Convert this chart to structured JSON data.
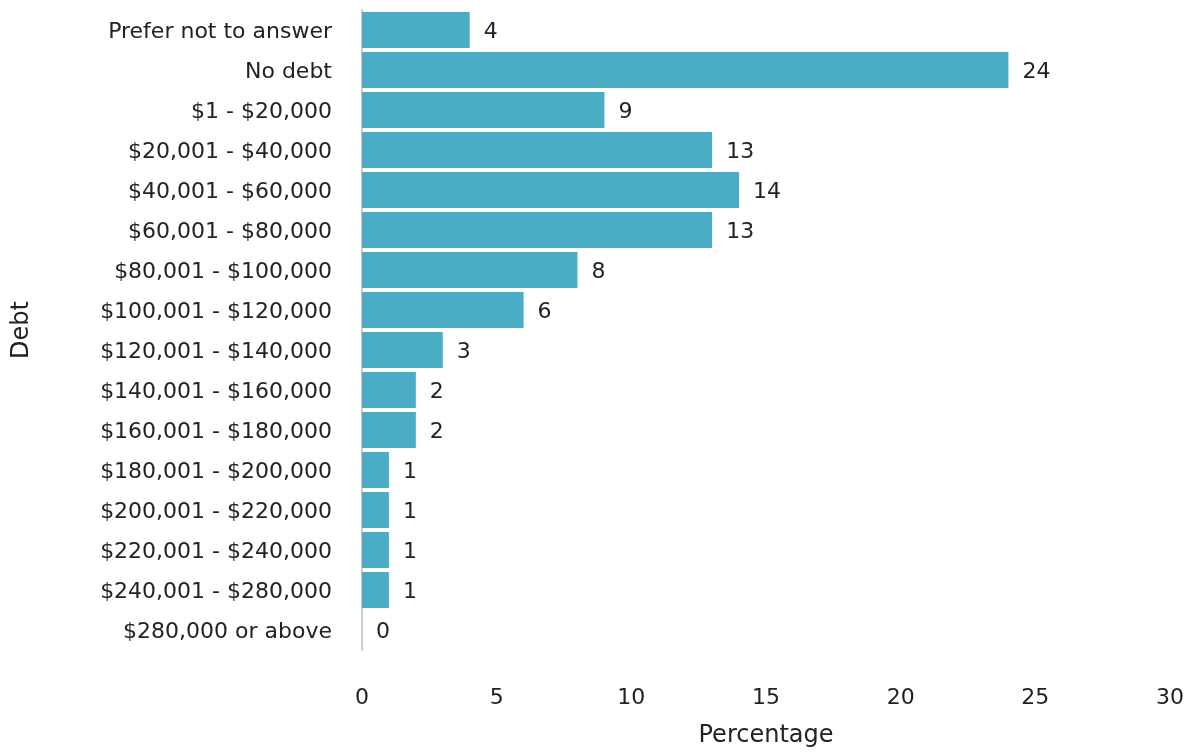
{
  "chart_data": {
    "type": "bar",
    "orientation": "horizontal",
    "xlabel": "Percentage",
    "ylabel": "Debt",
    "categories": [
      "Prefer not to answer",
      "No debt",
      "$1 - $20,000",
      "$20,001 - $40,000",
      "$40,001 - $60,000",
      "$60,001 - $80,000",
      "$80,001 - $100,000",
      "$100,001 - $120,000",
      "$120,001 - $140,000",
      "$140,001 - $160,000",
      "$160,001 - $180,000",
      "$180,001 - $200,000",
      "$200,001 - $220,000",
      "$220,001 - $240,000",
      "$240,001 - $280,000",
      "$280,000 or above"
    ],
    "values": [
      4,
      24,
      9,
      13,
      14,
      13,
      8,
      6,
      3,
      2,
      2,
      1,
      1,
      1,
      1,
      0
    ],
    "color": "#4bacc6",
    "xlim": [
      0,
      30
    ],
    "xticks": [
      0,
      5,
      10,
      15,
      20,
      25,
      30
    ],
    "grid": false,
    "data_labels": true
  }
}
